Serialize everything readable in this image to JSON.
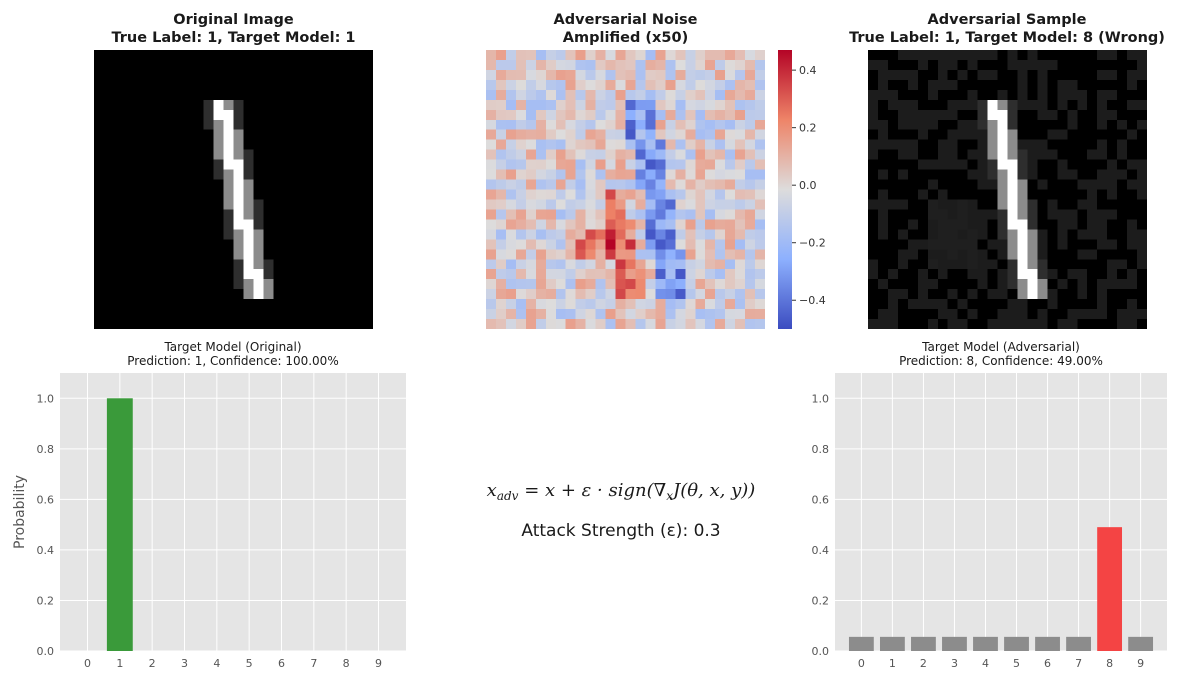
{
  "panels": {
    "original": {
      "title": "Original Image",
      "subtitle": "True Label: 1, Target Model: 1"
    },
    "noise": {
      "title": "Adversarial Noise",
      "subtitle": "Amplified (x50)",
      "colorbar_ticks": [
        "0.4",
        "0.2",
        "0.0",
        "−0.2",
        "−0.4"
      ]
    },
    "adversarial": {
      "title": "Adversarial Sample",
      "subtitle": "True Label: 1, Target Model: 8 (Wrong)"
    }
  },
  "formula": {
    "lhs": "x",
    "lhs_sub": "adv",
    "rhs": "= x + ε · sign(∇",
    "grad_sub": "x",
    "rhs_end": "J(θ, x, y))"
  },
  "attack_strength": "Attack Strength (ε): 0.3",
  "chart_data": [
    {
      "type": "bar",
      "title": "Target Model (Original)",
      "subtitle": "Prediction: 1, Confidence: 100.00%",
      "categories": [
        "0",
        "1",
        "2",
        "3",
        "4",
        "5",
        "6",
        "7",
        "8",
        "9"
      ],
      "values": [
        0,
        1.0,
        0,
        0,
        0,
        0,
        0,
        0,
        0,
        0
      ],
      "highlight_index": 1,
      "highlight_color": "#3a9a3a",
      "base_color": "#8c8c8c",
      "ylabel": "Probability",
      "ylim": [
        0,
        1.1
      ],
      "yticks": [
        "0.0",
        "0.2",
        "0.4",
        "0.6",
        "0.8",
        "1.0"
      ],
      "grid": true
    },
    {
      "type": "bar",
      "title": "Target Model (Adversarial)",
      "subtitle": "Prediction: 8, Confidence: 49.00%",
      "categories": [
        "0",
        "1",
        "2",
        "3",
        "4",
        "5",
        "6",
        "7",
        "8",
        "9"
      ],
      "values": [
        0.056,
        0.056,
        0.056,
        0.056,
        0.056,
        0.056,
        0.056,
        0.056,
        0.49,
        0.056
      ],
      "highlight_index": 8,
      "highlight_color": "#f44444",
      "base_color": "#8c8c8c",
      "ylabel": "",
      "ylim": [
        0,
        1.1
      ],
      "yticks": [
        "0.0",
        "0.2",
        "0.4",
        "0.6",
        "0.8",
        "1.0"
      ],
      "grid": true
    }
  ]
}
